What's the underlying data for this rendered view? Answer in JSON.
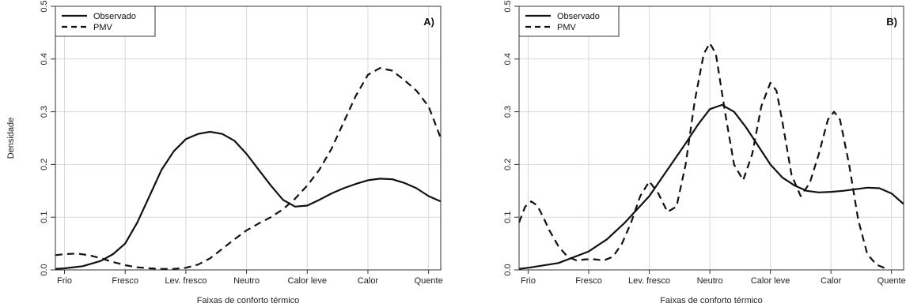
{
  "chart_data": [
    {
      "type": "line",
      "panel_label": "A)",
      "xlabel": "Faixas de conforto térmico",
      "ylabel": "Densidade",
      "categories": [
        "Frio",
        "Fresco",
        "Lev. fresco",
        "Neutro",
        "Calor leve",
        "Calor",
        "Quente"
      ],
      "xlim": [
        0.85,
        7.2
      ],
      "ylim": [
        0,
        0.5
      ],
      "yticks": [
        0.0,
        0.1,
        0.2,
        0.3,
        0.4,
        0.5
      ],
      "ytick_labels": [
        "0.0",
        "0.1",
        "0.2",
        "0.3",
        "0.4",
        "0.5"
      ],
      "grid": true,
      "legend_position": "top-left",
      "series": [
        {
          "name": "Observado",
          "style": "solid",
          "x": [
            0.85,
            1.0,
            1.3,
            1.6,
            1.8,
            2.0,
            2.2,
            2.4,
            2.6,
            2.8,
            3.0,
            3.2,
            3.4,
            3.6,
            3.8,
            4.0,
            4.2,
            4.4,
            4.6,
            4.8,
            5.0,
            5.2,
            5.4,
            5.6,
            5.8,
            6.0,
            6.2,
            6.4,
            6.6,
            6.8,
            7.0,
            7.2
          ],
          "y": [
            0.002,
            0.003,
            0.007,
            0.017,
            0.03,
            0.05,
            0.09,
            0.14,
            0.19,
            0.225,
            0.248,
            0.258,
            0.262,
            0.258,
            0.245,
            0.22,
            0.19,
            0.16,
            0.133,
            0.12,
            0.122,
            0.133,
            0.145,
            0.155,
            0.163,
            0.17,
            0.173,
            0.172,
            0.165,
            0.155,
            0.14,
            0.13
          ]
        },
        {
          "name": "PMV",
          "style": "dashed",
          "x": [
            0.85,
            1.0,
            1.2,
            1.4,
            1.6,
            1.8,
            2.0,
            2.2,
            2.4,
            2.6,
            2.8,
            3.0,
            3.2,
            3.4,
            3.6,
            3.8,
            4.0,
            4.2,
            4.4,
            4.6,
            4.8,
            5.0,
            5.2,
            5.4,
            5.6,
            5.8,
            6.0,
            6.2,
            6.4,
            6.6,
            6.8,
            7.0,
            7.2
          ],
          "y": [
            0.028,
            0.03,
            0.031,
            0.028,
            0.022,
            0.015,
            0.009,
            0.005,
            0.003,
            0.002,
            0.002,
            0.004,
            0.01,
            0.022,
            0.04,
            0.058,
            0.075,
            0.088,
            0.1,
            0.115,
            0.135,
            0.16,
            0.19,
            0.23,
            0.28,
            0.33,
            0.37,
            0.383,
            0.378,
            0.36,
            0.34,
            0.31,
            0.25
          ]
        }
      ]
    },
    {
      "type": "line",
      "panel_label": "B)",
      "xlabel": "Faixas de conforto térmico",
      "ylabel": "",
      "categories": [
        "Frio",
        "Fresco",
        "Lev. fresco",
        "Neutro",
        "Calor leve",
        "Calor",
        "Quente"
      ],
      "xlim": [
        0.85,
        7.2
      ],
      "ylim": [
        0,
        0.5
      ],
      "yticks": [
        0.0,
        0.1,
        0.2,
        0.3,
        0.4,
        0.5
      ],
      "ytick_labels": [
        "0.0",
        "0.1",
        "0.2",
        "0.3",
        "0.4",
        "0.5"
      ],
      "grid": true,
      "legend_position": "top-left",
      "series": [
        {
          "name": "Observado",
          "style": "solid",
          "x": [
            0.85,
            1.0,
            1.5,
            2.0,
            2.3,
            2.6,
            3.0,
            3.3,
            3.6,
            3.8,
            4.0,
            4.2,
            4.4,
            4.6,
            4.8,
            5.0,
            5.2,
            5.4,
            5.6,
            5.8,
            6.0,
            6.2,
            6.4,
            6.6,
            6.8,
            7.0,
            7.2
          ],
          "y": [
            0.002,
            0.004,
            0.013,
            0.035,
            0.058,
            0.09,
            0.14,
            0.19,
            0.24,
            0.275,
            0.305,
            0.313,
            0.3,
            0.27,
            0.235,
            0.2,
            0.175,
            0.16,
            0.15,
            0.147,
            0.148,
            0.15,
            0.153,
            0.156,
            0.155,
            0.145,
            0.125
          ]
        },
        {
          "name": "PMV",
          "style": "dashed",
          "x": [
            0.85,
            0.95,
            1.05,
            1.15,
            1.25,
            1.35,
            1.5,
            1.65,
            1.8,
            1.95,
            2.1,
            2.25,
            2.4,
            2.55,
            2.7,
            2.85,
            3.0,
            3.15,
            3.3,
            3.45,
            3.6,
            3.75,
            3.9,
            4.0,
            4.1,
            4.25,
            4.4,
            4.55,
            4.7,
            4.85,
            5.0,
            5.1,
            5.2,
            5.35,
            5.5,
            5.65,
            5.8,
            5.95,
            6.05,
            6.15,
            6.3,
            6.45,
            6.6,
            6.75,
            6.9
          ],
          "y": [
            0.09,
            0.12,
            0.13,
            0.122,
            0.1,
            0.075,
            0.045,
            0.025,
            0.018,
            0.02,
            0.02,
            0.018,
            0.025,
            0.05,
            0.09,
            0.14,
            0.168,
            0.145,
            0.11,
            0.12,
            0.2,
            0.32,
            0.41,
            0.43,
            0.41,
            0.3,
            0.2,
            0.17,
            0.22,
            0.31,
            0.355,
            0.34,
            0.28,
            0.18,
            0.14,
            0.165,
            0.22,
            0.285,
            0.3,
            0.285,
            0.2,
            0.095,
            0.03,
            0.01,
            0.003
          ]
        }
      ]
    }
  ]
}
